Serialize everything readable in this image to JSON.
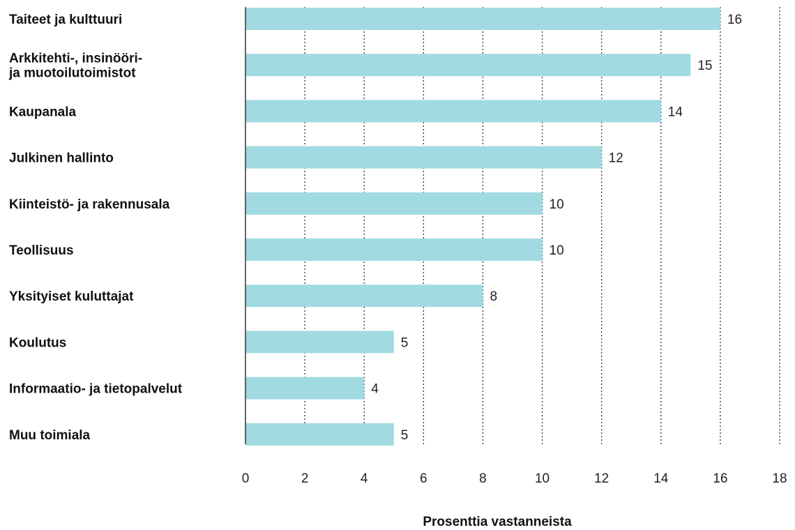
{
  "chart_data": {
    "type": "bar",
    "orientation": "horizontal",
    "categories": [
      "Taiteet ja kulttuuri",
      "Arkkitehti-, insinööri-\nja muotoilutoimistot",
      "Kaupanala",
      "Julkinen hallinto",
      "Kiinteistö- ja rakennusala",
      "Teollisuus",
      "Yksityiset kuluttajat",
      "Koulutus",
      "Informaatio- ja tietopalvelut",
      "Muu toimiala"
    ],
    "values": [
      16,
      15,
      14,
      12,
      10,
      10,
      8,
      5,
      4,
      5
    ],
    "value_labels": [
      "16",
      "15",
      "14",
      "12",
      "10",
      "10",
      "8",
      "5",
      "4",
      "5"
    ],
    "xlabel": "Prosenttia vastanneista",
    "ylabel": "",
    "xlim": [
      0,
      18
    ],
    "xticks": [
      0,
      2,
      4,
      6,
      8,
      10,
      12,
      14,
      16,
      18
    ],
    "xtick_labels": [
      "0",
      "2",
      "4",
      "6",
      "8",
      "10",
      "12",
      "14",
      "16",
      "18"
    ],
    "grid": "vertical dotted",
    "bar_color": "#a2dae2",
    "grid_color": "#333333"
  }
}
